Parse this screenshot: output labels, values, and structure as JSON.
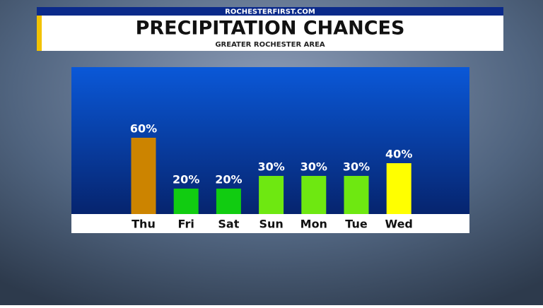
{
  "chart_data": {
    "type": "bar",
    "site": "ROCHESTERFIRST.COM",
    "title": "PRECIPITATION CHANCES",
    "subtitle": "GREATER ROCHESTER AREA",
    "categories": [
      "Thu",
      "Fri",
      "Sat",
      "Sun",
      "Mon",
      "Tue",
      "Wed"
    ],
    "values": [
      60,
      20,
      20,
      30,
      30,
      30,
      40
    ],
    "value_labels": [
      "60%",
      "20%",
      "20%",
      "30%",
      "30%",
      "30%",
      "40%"
    ],
    "colors": [
      "#cc8400",
      "#11cc11",
      "#11cc11",
      "#6ee811",
      "#6ee811",
      "#6ee811",
      "#ffff00"
    ]
  }
}
